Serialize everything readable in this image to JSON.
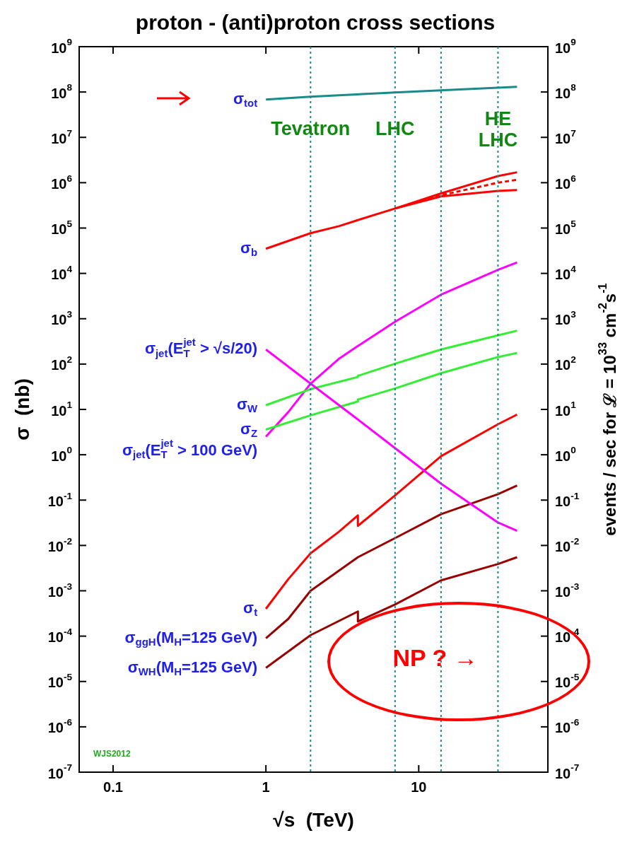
{
  "chart_data": {
    "type": "line",
    "title": "proton - (anti)proton cross sections",
    "xlabel": "√s  (TeV)",
    "ylabel": "σ  (nb)",
    "y2label": "events / sec for ℒ = 10$^{33}$ cm$^{-2}$s$^{-1}$",
    "log": "xy",
    "grid": false,
    "marker": "none",
    "xlim": [
      0.06,
      70
    ],
    "xticks": [
      0.1,
      1,
      10
    ],
    "ylim": [
      1e-07,
      1000000000.0
    ],
    "yticks": [
      {
        "value": 1e-07,
        "label": "10$^{-7}$"
      },
      {
        "value": 1e-06,
        "label": "10$^{-6}$"
      },
      {
        "value": 1e-05,
        "label": "10$^{-5}$"
      },
      {
        "value": 0.0001,
        "label": "10$^{-4}$"
      },
      {
        "value": 0.001,
        "label": "10$^{-3}$"
      },
      {
        "value": 0.01,
        "label": "10$^{-2}$"
      },
      {
        "value": 0.1,
        "label": "10$^{-1}$"
      },
      {
        "value": 1,
        "label": "10$^{0}$"
      },
      {
        "value": 10,
        "label": "10$^{1}$"
      },
      {
        "value": 100,
        "label": "10$^{2}$"
      },
      {
        "value": 1000.0,
        "label": "10$^{3}$"
      },
      {
        "value": 10000.0,
        "label": "10$^{4}$"
      },
      {
        "value": 100000.0,
        "label": "10$^{5}$"
      },
      {
        "value": 1000000.0,
        "label": "10$^{6}$"
      },
      {
        "value": 10000000.0,
        "label": "10$^{7}$"
      },
      {
        "value": 100000000.0,
        "label": "10$^{8}$"
      },
      {
        "value": 1000000000.0,
        "label": "10$^{9}$"
      }
    ],
    "series": [
      {
        "name": "σ$_{tot}$",
        "color": "#1a8a8a",
        "x": [
          1,
          1.96,
          7,
          44
        ],
        "values": [
          68000000.0,
          79000000.0,
          98000000.0,
          130000000.0
        ]
      },
      {
        "name": "σ$_{b}$",
        "color": "#ff0000",
        "x": [
          1,
          1.96,
          3,
          4,
          7,
          14,
          33,
          44
        ],
        "values": [
          35000.0,
          77000.0,
          110000.0,
          150000.0,
          270000.0,
          580000.0,
          1400000.0,
          1700000.0
        ]
      },
      {
        "color": "#ff0000",
        "x": [
          7,
          14,
          33,
          44
        ],
        "values": [
          270000.0,
          500000.0,
          660000.0,
          690000.0
        ]
      },
      {
        "color": "#ff0000",
        "line_style": "dashed",
        "x": [
          7,
          14,
          33,
          44
        ],
        "values": [
          270000.0,
          530000.0,
          1000000.0,
          1160000.0
        ]
      },
      {
        "name": "σ$_{jet}$(E$_{T}$$^{jet}$ > √s/20)",
        "color": "#ff00ff",
        "x": [
          1,
          1.96,
          4,
          7,
          14,
          33,
          44
        ],
        "values": [
          210,
          37,
          6,
          1.4,
          0.23,
          0.032,
          0.021
        ]
      },
      {
        "name": "σ$_{W}$",
        "color": "#33ee33",
        "x": [
          1,
          1.96,
          4,
          4,
          7,
          14,
          33,
          44
        ],
        "values": [
          12.4,
          28,
          52,
          55,
          102,
          210,
          430,
          545
        ]
      },
      {
        "name": "σ$_{Z}$",
        "color": "#33ee33",
        "x": [
          1,
          1.96,
          4,
          4,
          7,
          14,
          33,
          44
        ],
        "values": [
          3.6,
          7.4,
          15,
          16.5,
          29,
          63,
          143,
          176
        ]
      },
      {
        "name": "σ$_{jet}$(E$_{T}$$^{jet}$ > 100 GeV)",
        "color": "#ff00ff",
        "x": [
          1,
          1.4,
          1.96,
          3,
          4,
          7,
          14,
          33,
          44
        ],
        "values": [
          2.5,
          8.7,
          37,
          130,
          250,
          860,
          3400,
          12000,
          17500
        ]
      },
      {
        "name": "σ$_{t}$",
        "color": "#ff0000",
        "x": [
          1,
          1.4,
          1.96,
          3,
          4,
          4,
          7,
          14,
          33,
          44
        ],
        "values": [
          0.0004,
          0.0018,
          0.0067,
          0.02,
          0.046,
          0.027,
          0.127,
          0.93,
          4.7,
          7.7
        ]
      },
      {
        "name": "σ$_{ggH}$(M$_{H}$=125 GeV)",
        "color": "#990000",
        "x": [
          1,
          1.4,
          1.96,
          4,
          7,
          14,
          33,
          44
        ],
        "values": [
          9e-05,
          0.00024,
          0.001,
          0.0055,
          0.0145,
          0.049,
          0.135,
          0.21
        ]
      },
      {
        "name": "σ$_{WH}$(M$_{H}$=125 GeV)",
        "color": "#990000",
        "x": [
          1,
          1.96,
          4,
          4,
          7,
          14,
          33,
          44
        ],
        "values": [
          2e-05,
          0.000105,
          0.00035,
          0.00021,
          0.0005,
          0.0017,
          0.0039,
          0.0055
        ]
      }
    ],
    "ref_lines": [
      {
        "axis": "x",
        "value": 1.96,
        "label": "Tevatron",
        "color": "#1a8a8a",
        "line_style": "dotted"
      },
      {
        "axis": "x",
        "value": 7,
        "label": "LHC",
        "color": "#1a8a8a",
        "line_style": "dotted"
      },
      {
        "axis": "x",
        "value": 14,
        "color": "#1a8a8a",
        "line_style": "dotted"
      },
      {
        "axis": "x",
        "value": 33,
        "label": "HE LHC",
        "color": "#1a8a8a",
        "line_style": "dotted"
      }
    ],
    "annotations": [
      "WJS2012",
      "NP ? →"
    ]
  }
}
